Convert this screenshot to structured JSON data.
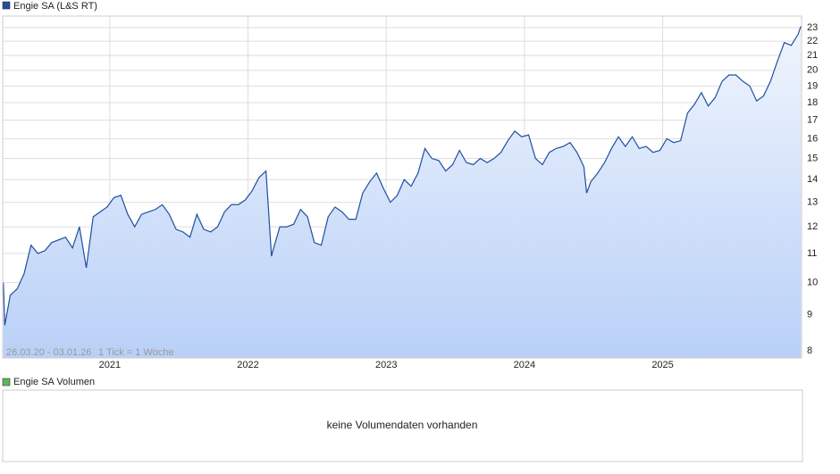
{
  "chart_data": {
    "type": "line",
    "log_scale": true,
    "grid": true,
    "annotations": [
      "26.03.20 - 03.01.26",
      "1 Tick = 1 Woche"
    ],
    "xlim": [
      2020.225,
      2026.005
    ],
    "xticks": [
      2021,
      2022,
      2023,
      2024,
      2025
    ],
    "ylim": [
      7.82,
      23.88
    ],
    "yticks": [
      8,
      9,
      10,
      11,
      12,
      13,
      14,
      15,
      16,
      17,
      18,
      19,
      20,
      21,
      22,
      23
    ],
    "x": [
      2020.23,
      2020.24,
      2020.28,
      2020.33,
      2020.38,
      2020.43,
      2020.48,
      2020.53,
      2020.58,
      2020.63,
      2020.68,
      2020.73,
      2020.78,
      2020.83,
      2020.88,
      2020.93,
      2020.98,
      2021.03,
      2021.08,
      2021.13,
      2021.18,
      2021.23,
      2021.28,
      2021.33,
      2021.38,
      2021.43,
      2021.48,
      2021.53,
      2021.58,
      2021.63,
      2021.68,
      2021.73,
      2021.78,
      2021.83,
      2021.88,
      2021.93,
      2021.98,
      2022.03,
      2022.08,
      2022.13,
      2022.17,
      2022.18,
      2022.23,
      2022.28,
      2022.33,
      2022.38,
      2022.43,
      2022.48,
      2022.53,
      2022.58,
      2022.63,
      2022.68,
      2022.73,
      2022.78,
      2022.83,
      2022.88,
      2022.93,
      2022.98,
      2023.03,
      2023.08,
      2023.13,
      2023.18,
      2023.23,
      2023.28,
      2023.33,
      2023.38,
      2023.43,
      2023.48,
      2023.53,
      2023.58,
      2023.63,
      2023.68,
      2023.73,
      2023.78,
      2023.83,
      2023.88,
      2023.93,
      2023.98,
      2024.03,
      2024.08,
      2024.13,
      2024.18,
      2024.23,
      2024.28,
      2024.33,
      2024.38,
      2024.43,
      2024.45,
      2024.48,
      2024.53,
      2024.58,
      2024.63,
      2024.68,
      2024.73,
      2024.78,
      2024.83,
      2024.88,
      2024.93,
      2024.98,
      2025.03,
      2025.08,
      2025.13,
      2025.18,
      2025.23,
      2025.28,
      2025.33,
      2025.38,
      2025.43,
      2025.48,
      2025.53,
      2025.58,
      2025.63,
      2025.68,
      2025.73,
      2025.78,
      2025.83,
      2025.88,
      2025.93,
      2025.98,
      2026.0
    ],
    "series": [
      {
        "name": "Engie SA (L&S RT)",
        "color": "#1f4fa0",
        "values": [
          10.0,
          8.7,
          9.6,
          9.8,
          10.3,
          11.3,
          11.0,
          11.1,
          11.4,
          11.5,
          11.6,
          11.2,
          12.0,
          10.5,
          12.4,
          12.6,
          12.8,
          13.2,
          13.3,
          12.5,
          12.0,
          12.5,
          12.6,
          12.7,
          12.9,
          12.5,
          11.9,
          11.8,
          11.6,
          12.5,
          11.9,
          11.8,
          12.0,
          12.6,
          12.9,
          12.9,
          13.1,
          13.5,
          14.1,
          14.4,
          10.9,
          11.1,
          12.0,
          12.0,
          12.1,
          12.7,
          12.4,
          11.4,
          11.3,
          12.4,
          12.8,
          12.6,
          12.3,
          12.3,
          13.4,
          13.9,
          14.3,
          13.6,
          13.0,
          13.3,
          14.0,
          13.7,
          14.3,
          15.5,
          15.0,
          14.9,
          14.4,
          14.7,
          15.4,
          14.8,
          14.7,
          15.0,
          14.8,
          15.0,
          15.3,
          15.9,
          16.4,
          16.1,
          16.2,
          15.0,
          14.7,
          15.3,
          15.5,
          15.6,
          15.8,
          15.3,
          14.6,
          13.4,
          13.9,
          14.3,
          14.8,
          15.5,
          16.1,
          15.6,
          16.1,
          15.5,
          15.6,
          15.3,
          15.4,
          16.0,
          15.8,
          15.9,
          17.4,
          17.9,
          18.6,
          17.8,
          18.3,
          19.3,
          19.7,
          19.7,
          19.3,
          19.0,
          18.1,
          18.4,
          19.3,
          20.6,
          21.9,
          21.7,
          22.5,
          23.1
        ]
      }
    ]
  },
  "volume_panel": {
    "legend": "Engie SA Volumen",
    "color": "#5cb85c",
    "message": "keine Volumendaten vorhanden"
  }
}
